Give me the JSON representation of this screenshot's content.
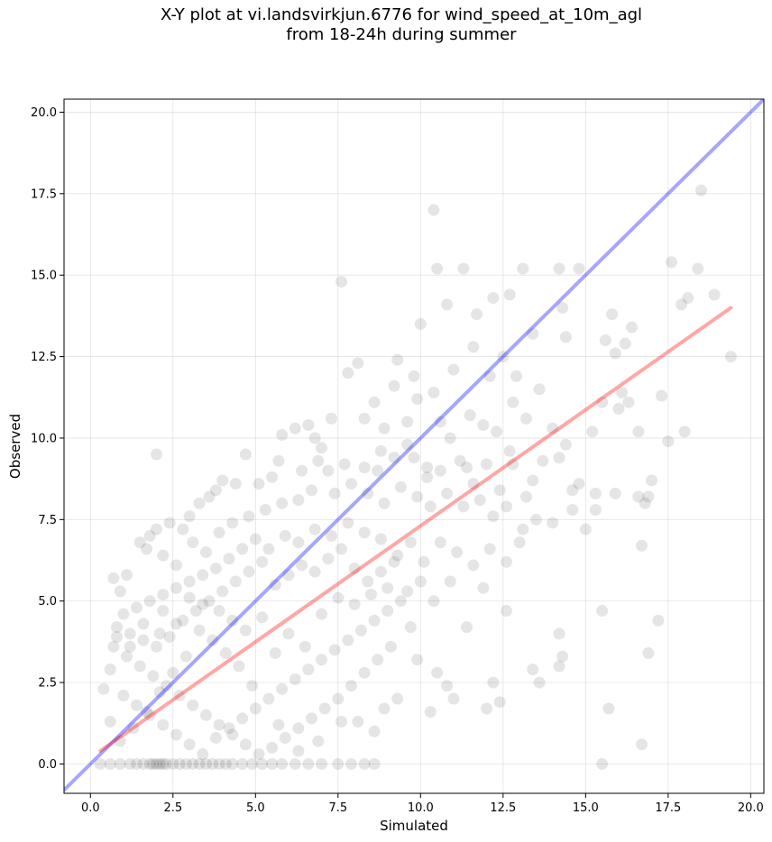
{
  "chart_data": {
    "type": "scatter",
    "title_line1": "X-Y plot at vi.landsvirkjun.6776 for wind_speed_at_10m_agl",
    "title_line2": "from 18-24h during summer",
    "xlabel": "Simulated",
    "ylabel": "Observed",
    "xlim": [
      -0.8,
      20.4
    ],
    "ylim": [
      -0.9,
      20.4
    ],
    "xticks": [
      0.0,
      2.5,
      5.0,
      7.5,
      10.0,
      12.5,
      15.0,
      17.5,
      20.0
    ],
    "yticks": [
      0.0,
      2.5,
      5.0,
      7.5,
      10.0,
      12.5,
      15.0,
      17.5,
      20.0
    ],
    "xtick_labels": [
      "0.0",
      "2.5",
      "5.0",
      "7.5",
      "10.0",
      "12.5",
      "15.0",
      "17.5",
      "20.0"
    ],
    "ytick_labels": [
      "0.0",
      "2.5",
      "5.0",
      "7.5",
      "10.0",
      "12.5",
      "15.0",
      "17.5",
      "20.0"
    ],
    "grid": true,
    "point_color": "#000000",
    "point_opacity": 0.1,
    "lines": [
      {
        "kind": "identity",
        "color": "#0000ff",
        "opacity": 0.35,
        "x": [
          -0.8,
          20.4
        ],
        "y": [
          -0.8,
          20.4
        ]
      },
      {
        "kind": "fit",
        "color": "#ff0000",
        "opacity": 0.35,
        "x": [
          0.3,
          19.4
        ],
        "y": [
          0.4,
          14.0
        ]
      }
    ],
    "points": [
      [
        2.0,
        9.5
      ],
      [
        10.4,
        17.0
      ],
      [
        18.5,
        17.6
      ],
      [
        7.6,
        14.8
      ],
      [
        10.5,
        15.2
      ],
      [
        11.3,
        15.2
      ],
      [
        13.1,
        15.2
      ],
      [
        14.2,
        15.2
      ],
      [
        14.8,
        15.2
      ],
      [
        17.6,
        15.4
      ],
      [
        18.4,
        15.2
      ],
      [
        18.9,
        14.4
      ],
      [
        18.1,
        14.3
      ],
      [
        17.9,
        14.1
      ],
      [
        16.4,
        13.4
      ],
      [
        15.8,
        13.8
      ],
      [
        14.3,
        14.0
      ],
      [
        12.7,
        14.4
      ],
      [
        12.2,
        14.3
      ],
      [
        11.7,
        13.8
      ],
      [
        10.8,
        14.1
      ],
      [
        10.0,
        13.5
      ],
      [
        16.2,
        12.9
      ],
      [
        15.6,
        13.0
      ],
      [
        15.9,
        12.6
      ],
      [
        14.4,
        13.1
      ],
      [
        13.4,
        13.2
      ],
      [
        12.5,
        12.5
      ],
      [
        11.6,
        12.8
      ],
      [
        19.4,
        12.5
      ],
      [
        17.3,
        11.3
      ],
      [
        16.1,
        11.4
      ],
      [
        16.3,
        11.1
      ],
      [
        15.5,
        11.1
      ],
      [
        13.6,
        11.5
      ],
      [
        12.9,
        11.9
      ],
      [
        12.1,
        11.9
      ],
      [
        11.0,
        12.1
      ],
      [
        10.4,
        11.4
      ],
      [
        9.3,
        12.4
      ],
      [
        8.1,
        12.3
      ],
      [
        7.8,
        12.0
      ],
      [
        9.2,
        11.6
      ],
      [
        9.8,
        11.9
      ],
      [
        9.9,
        11.2
      ],
      [
        8.6,
        11.1
      ],
      [
        8.3,
        10.6
      ],
      [
        7.3,
        10.6
      ],
      [
        6.6,
        10.4
      ],
      [
        6.2,
        10.3
      ],
      [
        5.8,
        10.1
      ],
      [
        6.8,
        10.0
      ],
      [
        7.0,
        9.7
      ],
      [
        8.9,
        10.3
      ],
      [
        9.6,
        10.5
      ],
      [
        10.6,
        10.5
      ],
      [
        11.5,
        10.7
      ],
      [
        12.3,
        10.2
      ],
      [
        13.2,
        10.6
      ],
      [
        14.0,
        10.3
      ],
      [
        15.2,
        10.2
      ],
      [
        16.0,
        10.9
      ],
      [
        16.6,
        10.2
      ],
      [
        17.5,
        9.9
      ],
      [
        18.0,
        10.2
      ],
      [
        17.0,
        8.7
      ],
      [
        16.6,
        8.2
      ],
      [
        15.3,
        8.3
      ],
      [
        14.6,
        8.4
      ],
      [
        14.2,
        9.4
      ],
      [
        13.4,
        8.7
      ],
      [
        12.8,
        9.2
      ],
      [
        12.4,
        8.4
      ],
      [
        12.0,
        9.2
      ],
      [
        11.6,
        8.6
      ],
      [
        11.2,
        9.3
      ],
      [
        10.6,
        9.0
      ],
      [
        10.2,
        8.8
      ],
      [
        9.8,
        9.4
      ],
      [
        9.2,
        9.4
      ],
      [
        8.7,
        9.0
      ],
      [
        8.3,
        9.1
      ],
      [
        7.7,
        9.2
      ],
      [
        7.2,
        9.0
      ],
      [
        6.9,
        9.3
      ],
      [
        6.4,
        9.0
      ],
      [
        5.7,
        9.3
      ],
      [
        5.5,
        8.8
      ],
      [
        5.1,
        8.6
      ],
      [
        4.7,
        9.5
      ],
      [
        4.4,
        8.6
      ],
      [
        4.0,
        8.7
      ],
      [
        3.8,
        8.4
      ],
      [
        3.6,
        8.2
      ],
      [
        3.3,
        8.0
      ],
      [
        3.0,
        7.6
      ],
      [
        2.8,
        7.2
      ],
      [
        2.4,
        7.4
      ],
      [
        2.0,
        7.2
      ],
      [
        1.8,
        7.0
      ],
      [
        1.5,
        6.8
      ],
      [
        1.7,
        6.6
      ],
      [
        2.2,
        6.4
      ],
      [
        2.6,
        6.1
      ],
      [
        3.1,
        6.8
      ],
      [
        3.5,
        6.5
      ],
      [
        3.9,
        7.1
      ],
      [
        4.3,
        7.4
      ],
      [
        4.8,
        7.6
      ],
      [
        5.3,
        7.8
      ],
      [
        5.8,
        8.0
      ],
      [
        6.3,
        8.1
      ],
      [
        6.7,
        8.4
      ],
      [
        7.4,
        8.3
      ],
      [
        7.9,
        8.6
      ],
      [
        8.4,
        8.3
      ],
      [
        8.9,
        8.0
      ],
      [
        9.4,
        8.5
      ],
      [
        9.9,
        8.2
      ],
      [
        10.3,
        7.9
      ],
      [
        10.8,
        8.3
      ],
      [
        11.3,
        7.9
      ],
      [
        11.8,
        8.1
      ],
      [
        12.2,
        7.6
      ],
      [
        12.6,
        7.9
      ],
      [
        13.1,
        7.2
      ],
      [
        13.5,
        7.5
      ],
      [
        14.0,
        7.4
      ],
      [
        14.6,
        7.8
      ],
      [
        15.0,
        7.2
      ],
      [
        15.3,
        7.8
      ],
      [
        16.7,
        6.7
      ],
      [
        13.0,
        6.8
      ],
      [
        12.6,
        6.2
      ],
      [
        12.1,
        6.6
      ],
      [
        11.6,
        6.1
      ],
      [
        11.1,
        6.5
      ],
      [
        10.6,
        6.8
      ],
      [
        10.1,
        6.2
      ],
      [
        9.7,
        6.8
      ],
      [
        9.3,
        6.4
      ],
      [
        8.8,
        6.9
      ],
      [
        8.3,
        7.1
      ],
      [
        7.8,
        7.4
      ],
      [
        7.3,
        7.0
      ],
      [
        6.8,
        7.2
      ],
      [
        6.3,
        6.8
      ],
      [
        5.9,
        7.0
      ],
      [
        5.4,
        6.6
      ],
      [
        5.0,
        6.9
      ],
      [
        4.6,
        6.6
      ],
      [
        4.2,
        6.3
      ],
      [
        3.8,
        6.0
      ],
      [
        3.4,
        5.8
      ],
      [
        3.0,
        5.6
      ],
      [
        2.6,
        5.4
      ],
      [
        2.2,
        5.2
      ],
      [
        1.8,
        5.0
      ],
      [
        1.4,
        4.8
      ],
      [
        1.0,
        4.6
      ],
      [
        0.8,
        4.2
      ],
      [
        1.2,
        4.0
      ],
      [
        1.6,
        3.8
      ],
      [
        2.0,
        3.6
      ],
      [
        2.4,
        3.9
      ],
      [
        2.8,
        4.4
      ],
      [
        3.2,
        4.7
      ],
      [
        3.6,
        5.0
      ],
      [
        4.0,
        5.3
      ],
      [
        4.4,
        5.6
      ],
      [
        4.8,
        5.9
      ],
      [
        5.2,
        6.2
      ],
      [
        5.6,
        5.5
      ],
      [
        6.0,
        5.8
      ],
      [
        6.4,
        6.1
      ],
      [
        6.8,
        5.9
      ],
      [
        7.2,
        6.3
      ],
      [
        7.6,
        6.6
      ],
      [
        8.0,
        6.0
      ],
      [
        8.4,
        5.6
      ],
      [
        8.8,
        5.9
      ],
      [
        9.2,
        6.2
      ],
      [
        9.6,
        5.3
      ],
      [
        10.0,
        5.6
      ],
      [
        10.4,
        5.0
      ],
      [
        10.9,
        5.6
      ],
      [
        11.4,
        4.2
      ],
      [
        11.9,
        5.4
      ],
      [
        12.6,
        4.7
      ],
      [
        14.2,
        4.0
      ],
      [
        15.5,
        4.7
      ],
      [
        17.2,
        4.4
      ],
      [
        16.9,
        3.4
      ],
      [
        14.3,
        3.3
      ],
      [
        14.2,
        3.0
      ],
      [
        13.6,
        2.5
      ],
      [
        13.4,
        2.9
      ],
      [
        12.2,
        2.5
      ],
      [
        12.4,
        1.9
      ],
      [
        12.0,
        1.7
      ],
      [
        11.0,
        2.0
      ],
      [
        10.8,
        2.4
      ],
      [
        10.5,
        2.8
      ],
      [
        9.9,
        3.2
      ],
      [
        10.3,
        1.6
      ],
      [
        9.7,
        4.2
      ],
      [
        9.1,
        3.6
      ],
      [
        8.7,
        3.2
      ],
      [
        8.3,
        2.8
      ],
      [
        7.9,
        2.4
      ],
      [
        7.5,
        2.0
      ],
      [
        7.1,
        1.7
      ],
      [
        6.7,
        1.4
      ],
      [
        6.3,
        1.1
      ],
      [
        5.9,
        0.8
      ],
      [
        5.5,
        0.5
      ],
      [
        5.1,
        0.3
      ],
      [
        4.7,
        0.6
      ],
      [
        4.3,
        0.9
      ],
      [
        3.9,
        1.2
      ],
      [
        3.5,
        1.5
      ],
      [
        3.1,
        1.8
      ],
      [
        2.7,
        2.1
      ],
      [
        2.3,
        2.4
      ],
      [
        1.9,
        2.7
      ],
      [
        1.5,
        3.0
      ],
      [
        1.1,
        3.3
      ],
      [
        0.7,
        3.6
      ],
      [
        0.4,
        2.3
      ],
      [
        0.6,
        2.9
      ],
      [
        1.0,
        2.1
      ],
      [
        1.4,
        1.8
      ],
      [
        1.8,
        1.5
      ],
      [
        2.2,
        1.2
      ],
      [
        2.6,
        0.9
      ],
      [
        3.0,
        0.6
      ],
      [
        3.4,
        0.3
      ],
      [
        3.8,
        0.8
      ],
      [
        4.2,
        1.1
      ],
      [
        4.6,
        1.4
      ],
      [
        5.0,
        1.7
      ],
      [
        5.4,
        2.0
      ],
      [
        5.8,
        2.3
      ],
      [
        6.2,
        2.6
      ],
      [
        6.6,
        2.9
      ],
      [
        7.0,
        3.2
      ],
      [
        7.4,
        3.5
      ],
      [
        7.8,
        3.8
      ],
      [
        8.2,
        4.1
      ],
      [
        8.6,
        4.4
      ],
      [
        9.0,
        4.7
      ],
      [
        9.4,
        5.0
      ],
      [
        8.1,
        1.3
      ],
      [
        8.9,
        1.7
      ],
      [
        9.3,
        2.0
      ],
      [
        8.6,
        1.0
      ],
      [
        7.6,
        1.3
      ],
      [
        6.9,
        0.7
      ],
      [
        6.3,
        0.4
      ],
      [
        5.7,
        1.2
      ],
      [
        4.9,
        2.4
      ],
      [
        4.5,
        3.0
      ],
      [
        4.1,
        3.4
      ],
      [
        3.7,
        3.8
      ],
      [
        3.3,
        4.1
      ],
      [
        2.9,
        3.3
      ],
      [
        2.5,
        2.8
      ],
      [
        2.1,
        2.2
      ],
      [
        1.7,
        1.6
      ],
      [
        1.3,
        1.1
      ],
      [
        0.9,
        0.7
      ],
      [
        0.6,
        1.3
      ],
      [
        15.7,
        1.7
      ],
      [
        15.5,
        0.0
      ],
      [
        16.7,
        0.6
      ],
      [
        0.9,
        5.3
      ],
      [
        0.7,
        5.7
      ],
      [
        1.1,
        5.8
      ],
      [
        2.2,
        4.7
      ],
      [
        6.0,
        4.0
      ],
      [
        6.5,
        3.6
      ],
      [
        7.0,
        4.6
      ],
      [
        7.5,
        5.1
      ],
      [
        8.0,
        4.9
      ],
      [
        8.5,
        5.2
      ],
      [
        9.0,
        5.4
      ],
      [
        5.6,
        3.4
      ],
      [
        5.2,
        4.5
      ],
      [
        4.7,
        4.1
      ],
      [
        4.3,
        4.4
      ],
      [
        3.9,
        4.7
      ],
      [
        3.4,
        4.9
      ],
      [
        3.0,
        5.1
      ],
      [
        2.6,
        4.3
      ],
      [
        2.1,
        4.0
      ],
      [
        1.6,
        4.3
      ],
      [
        1.2,
        3.6
      ],
      [
        0.8,
        3.9
      ],
      [
        13.2,
        8.2
      ],
      [
        14.8,
        8.6
      ],
      [
        15.9,
        8.3
      ],
      [
        16.8,
        8.0
      ],
      [
        11.9,
        10.4
      ],
      [
        12.8,
        11.1
      ],
      [
        10.9,
        10.0
      ],
      [
        9.6,
        9.8
      ],
      [
        8.8,
        9.6
      ],
      [
        13.7,
        9.3
      ],
      [
        14.4,
        9.8
      ],
      [
        12.7,
        9.6
      ],
      [
        11.4,
        9.1
      ],
      [
        10.2,
        9.1
      ],
      [
        16.9,
        8.2
      ],
      [
        0.3,
        0.0
      ],
      [
        0.6,
        0.0
      ],
      [
        0.9,
        0.0
      ],
      [
        1.2,
        0.0
      ],
      [
        1.4,
        0.0
      ],
      [
        1.6,
        0.0
      ],
      [
        1.8,
        0.0
      ],
      [
        1.9,
        0.0
      ],
      [
        2.0,
        0.0
      ],
      [
        2.1,
        0.0
      ],
      [
        2.2,
        0.0
      ],
      [
        2.3,
        0.0
      ],
      [
        2.5,
        0.0
      ],
      [
        2.7,
        0.0
      ],
      [
        2.9,
        0.0
      ],
      [
        3.1,
        0.0
      ],
      [
        3.3,
        0.0
      ],
      [
        3.5,
        0.0
      ],
      [
        3.7,
        0.0
      ],
      [
        3.9,
        0.0
      ],
      [
        4.1,
        0.0
      ],
      [
        4.3,
        0.0
      ],
      [
        4.6,
        0.0
      ],
      [
        4.9,
        0.0
      ],
      [
        5.2,
        0.0
      ],
      [
        5.5,
        0.0
      ],
      [
        5.8,
        0.0
      ],
      [
        6.2,
        0.0
      ],
      [
        6.6,
        0.0
      ],
      [
        7.0,
        0.0
      ],
      [
        7.5,
        0.0
      ],
      [
        7.9,
        0.0
      ],
      [
        8.3,
        0.0
      ],
      [
        8.6,
        0.0
      ]
    ]
  }
}
